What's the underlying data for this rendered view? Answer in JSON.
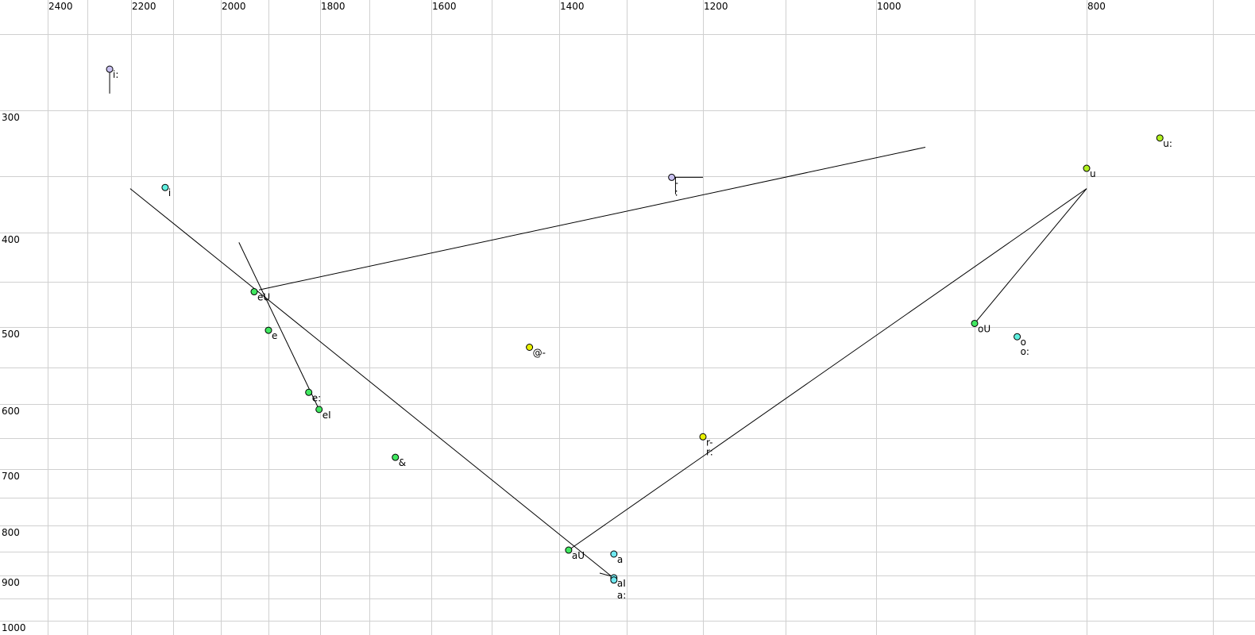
{
  "chart_data": {
    "type": "scatter",
    "title": "",
    "xlabel": "",
    "ylabel": "",
    "x_reversed": true,
    "y_reversed": true,
    "xlim": [
      2400,
      700
    ],
    "ylim": [
      250,
      1000
    ],
    "grid": true,
    "x_grid_values": [
      2400,
      2300,
      2200,
      2100,
      2000,
      1900,
      1800,
      1700,
      1600,
      1500,
      1400,
      1300,
      1200,
      1100,
      1000,
      900,
      800,
      700
    ],
    "y_grid_values": [
      250,
      300,
      350,
      400,
      450,
      500,
      550,
      600,
      650,
      700,
      750,
      800,
      850,
      900,
      950,
      1000
    ],
    "x_tick_labels": [
      "2400",
      "2200",
      "2000",
      "1800",
      "1600",
      "1400",
      "1200",
      "1000",
      "800"
    ],
    "y_tick_labels": [
      "300",
      "400",
      "500",
      "600",
      "700",
      "800",
      "900",
      "1000"
    ],
    "points": [
      {
        "labels": [
          "i:"
        ],
        "f2": 2249,
        "f1": 273,
        "color": "#c8c0f0"
      },
      {
        "labels": [
          "i"
        ],
        "f2": 2119,
        "f1": 360,
        "color": "#60f0e0"
      },
      {
        "labels": [
          "eU"
        ],
        "f2": 1930,
        "f1": 461,
        "color": "#40e860"
      },
      {
        "labels": [
          "e"
        ],
        "f2": 1900,
        "f1": 504,
        "color": "#40e860"
      },
      {
        "labels": [
          "e:"
        ],
        "f2": 1822,
        "f1": 584,
        "color": "#40e860"
      },
      {
        "labels": [
          "eI"
        ],
        "f2": 1802,
        "f1": 608,
        "color": "#40e860"
      },
      {
        "labels": [
          "&"
        ],
        "f2": 1658,
        "f1": 681,
        "color": "#40e860"
      },
      {
        "labels": [
          "@-"
        ],
        "f2": 1444,
        "f1": 525,
        "color": "#e8f000"
      },
      {
        "labels": [
          "-",
          ":"
        ],
        "f2": 1241,
        "f1": 351,
        "color": "#c8c0f0"
      },
      {
        "labels": [
          "r-",
          "r:"
        ],
        "f2": 1200,
        "f1": 648,
        "color": "#e8f000"
      },
      {
        "labels": [
          "aU"
        ],
        "f2": 1386,
        "f1": 847,
        "color": "#40e860"
      },
      {
        "labels": [
          "a"
        ],
        "f2": 1319,
        "f1": 855,
        "color": "#70e8f0",
        "label_color": "#6a6a8a"
      },
      {
        "labels": [
          "aI"
        ],
        "f2": 1319,
        "f1": 905,
        "color": "#70e8f0"
      },
      {
        "labels": [
          "a:"
        ],
        "f2": 1319,
        "f1": 910,
        "color": "#70e8f0"
      },
      {
        "labels": [
          "oU"
        ],
        "f2": 900,
        "f1": 496,
        "color": "#40e860"
      },
      {
        "labels": [
          "o",
          "o:"
        ],
        "f2": 862,
        "f1": 512,
        "color": "#60f0e0"
      },
      {
        "labels": [
          "u"
        ],
        "f2": 800,
        "f1": 344,
        "color": "#b0f020"
      },
      {
        "labels": [
          "u:"
        ],
        "f2": 742,
        "f1": 321,
        "color": "#b0f020"
      }
    ],
    "trajectories": [
      {
        "from": [
          2202,
          361
        ],
        "to": [
          1319,
          906
        ]
      },
      {
        "from": [
          1920,
          459
        ],
        "to": [
          950,
          328
        ]
      },
      {
        "from": [
          1962,
          410
        ],
        "to": [
          1802,
          608
        ]
      },
      {
        "from": [
          1386,
          847
        ],
        "to": [
          800,
          361
        ]
      },
      {
        "from": [
          900,
          496
        ],
        "to": [
          800,
          361
        ]
      },
      {
        "from": [
          2249,
          273
        ],
        "to": [
          2249,
          289
        ]
      },
      {
        "from": [
          1241,
          351
        ],
        "to": [
          1200,
          351
        ]
      },
      {
        "from": [
          1236,
          351
        ],
        "to": [
          1236,
          366
        ]
      },
      {
        "from": [
          1340,
          895
        ],
        "to": [
          1319,
          903
        ]
      }
    ],
    "colors": {
      "grid": "#d0d0d0",
      "line": "#000000"
    }
  }
}
